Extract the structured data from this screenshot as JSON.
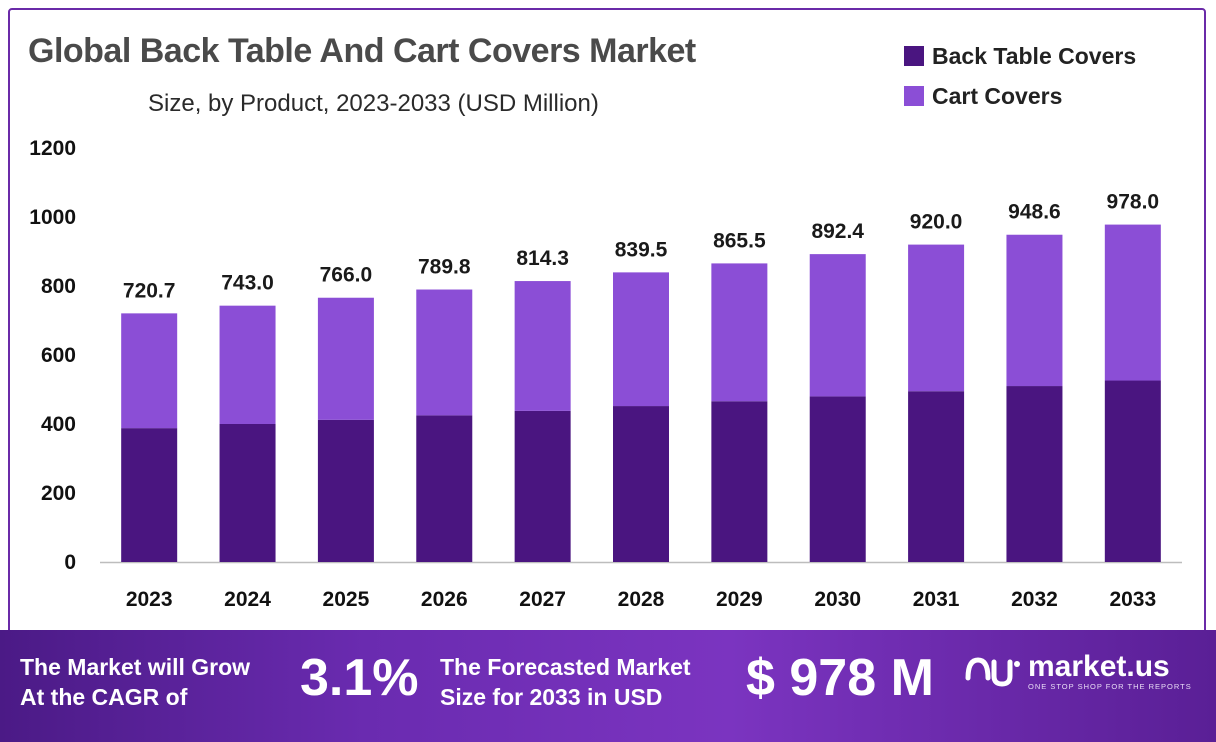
{
  "chart_data": {
    "type": "bar",
    "stacked": true,
    "title": "Global Back Table And Cart Covers Market",
    "subtitle": "Size, by Product, 2023-2033 (USD Million)",
    "categories": [
      "2023",
      "2024",
      "2025",
      "2026",
      "2027",
      "2028",
      "2029",
      "2030",
      "2031",
      "2032",
      "2033"
    ],
    "totals": [
      "720.7",
      "743.0",
      "766.0",
      "789.8",
      "814.3",
      "839.5",
      "865.5",
      "892.4",
      "920.0",
      "948.6",
      "978.0"
    ],
    "series": [
      {
        "name": "Back Table Covers",
        "color": "#4a1580",
        "values": [
          388,
          400,
          412,
          425,
          438,
          452,
          466,
          480,
          495,
          510,
          526
        ]
      },
      {
        "name": "Cart Covers",
        "color": "#8b4ed6",
        "values": [
          332.7,
          343.0,
          354.0,
          364.8,
          376.3,
          387.5,
          399.5,
          412.4,
          425.0,
          438.6,
          452.0
        ]
      }
    ],
    "ylim": [
      0,
      1200
    ],
    "yticks": [
      "0",
      "200",
      "400",
      "600",
      "800",
      "1000",
      "1200"
    ],
    "grid": false,
    "legend_position": "top-right"
  },
  "banner": {
    "cagr_label_line1": "The Market will Grow",
    "cagr_label_line2": "At the CAGR of",
    "cagr_value": "3.1%",
    "forecast_label_line1": "The Forecasted Market",
    "forecast_label_line2": "Size for 2033 in USD",
    "forecast_value": "$ 978 M",
    "brand_name": "market.us",
    "brand_tagline": "ONE STOP SHOP FOR THE REPORTS",
    "brand_icon": "market-us-logo-icon"
  }
}
